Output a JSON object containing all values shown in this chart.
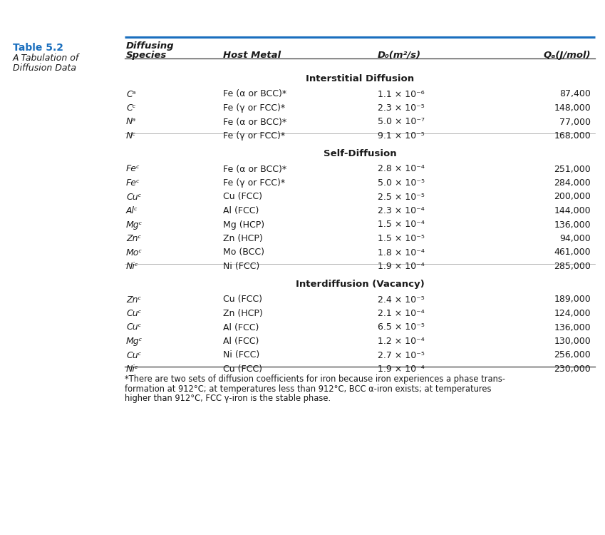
{
  "title": "Table 5.2",
  "subtitle_lines": [
    "A Tabulation of",
    "Diffusion Data"
  ],
  "title_color": "#1a6fbe",
  "col_headers_line1": [
    "Diffusing",
    "",
    "",
    ""
  ],
  "col_headers_line2": [
    "Species",
    "Host Metal",
    "D₀(m²/s)",
    "Qₐ(J/mol)"
  ],
  "section_headers": [
    "Interstitial Diffusion",
    "Self-Diffusion",
    "Interdiffusion (Vacancy)"
  ],
  "rows": [
    {
      "section": 0,
      "species": "Cᵃ",
      "host": "Fe (α or BCC)*",
      "D0": "1.1 × 10⁻⁶",
      "Q": "87,400"
    },
    {
      "section": 0,
      "species": "Cᶜ",
      "host": "Fe (γ or FCC)*",
      "D0": "2.3 × 10⁻⁵",
      "Q": "148,000"
    },
    {
      "section": 0,
      "species": "Nᵃ",
      "host": "Fe (α or BCC)*",
      "D0": "5.0 × 10⁻⁷",
      "Q": "77,000"
    },
    {
      "section": 0,
      "species": "Nᶜ",
      "host": "Fe (γ or FCC)*",
      "D0": "9.1 × 10⁻⁵",
      "Q": "168,000"
    },
    {
      "section": 1,
      "species": "Feᶜ",
      "host": "Fe (α or BCC)*",
      "D0": "2.8 × 10⁻⁴",
      "Q": "251,000"
    },
    {
      "section": 1,
      "species": "Feᶜ",
      "host": "Fe (γ or FCC)*",
      "D0": "5.0 × 10⁻⁵",
      "Q": "284,000"
    },
    {
      "section": 1,
      "species": "Cuᶜ",
      "host": "Cu (FCC)",
      "D0": "2.5 × 10⁻⁵",
      "Q": "200,000"
    },
    {
      "section": 1,
      "species": "Alᶜ",
      "host": "Al (FCC)",
      "D0": "2.3 × 10⁻⁴",
      "Q": "144,000"
    },
    {
      "section": 1,
      "species": "Mgᶜ",
      "host": "Mg (HCP)",
      "D0": "1.5 × 10⁻⁴",
      "Q": "136,000"
    },
    {
      "section": 1,
      "species": "Znᶜ",
      "host": "Zn (HCP)",
      "D0": "1.5 × 10⁻⁵",
      "Q": "94,000"
    },
    {
      "section": 1,
      "species": "Moᶜ",
      "host": "Mo (BCC)",
      "D0": "1.8 × 10⁻⁴",
      "Q": "461,000"
    },
    {
      "section": 1,
      "species": "Niᶜ",
      "host": "Ni (FCC)",
      "D0": "1.9 × 10⁻⁴",
      "Q": "285,000"
    },
    {
      "section": 2,
      "species": "Znᶜ",
      "host": "Cu (FCC)",
      "D0": "2.4 × 10⁻⁵",
      "Q": "189,000"
    },
    {
      "section": 2,
      "species": "Cuᶜ",
      "host": "Zn (HCP)",
      "D0": "2.1 × 10⁻⁴",
      "Q": "124,000"
    },
    {
      "section": 2,
      "species": "Cuᶜ",
      "host": "Al (FCC)",
      "D0": "6.5 × 10⁻⁵",
      "Q": "136,000"
    },
    {
      "section": 2,
      "species": "Mgᶜ",
      "host": "Al (FCC)",
      "D0": "1.2 × 10⁻⁴",
      "Q": "130,000"
    },
    {
      "section": 2,
      "species": "Cuᶜ",
      "host": "Ni (FCC)",
      "D0": "2.7 × 10⁻⁵",
      "Q": "256,000"
    },
    {
      "section": 2,
      "species": "Niᶜ",
      "host": "Cu (FCC)",
      "D0": "1.9 × 10⁻⁴",
      "Q": "230,000"
    }
  ],
  "footnote_lines": [
    "*There are two sets of diffusion coefficients for iron because iron experiences a phase trans-",
    "formation at 912°C; at temperatures less than 912°C, BCC α-iron exists; at temperatures",
    "higher than 912°C, FCC γ-iron is the stable phase."
  ],
  "bg_color": "#FFFFFF",
  "line_color_top": "#1a6fbe",
  "line_color_dark": "#3a3a3a",
  "text_color": "#1a1a1a"
}
